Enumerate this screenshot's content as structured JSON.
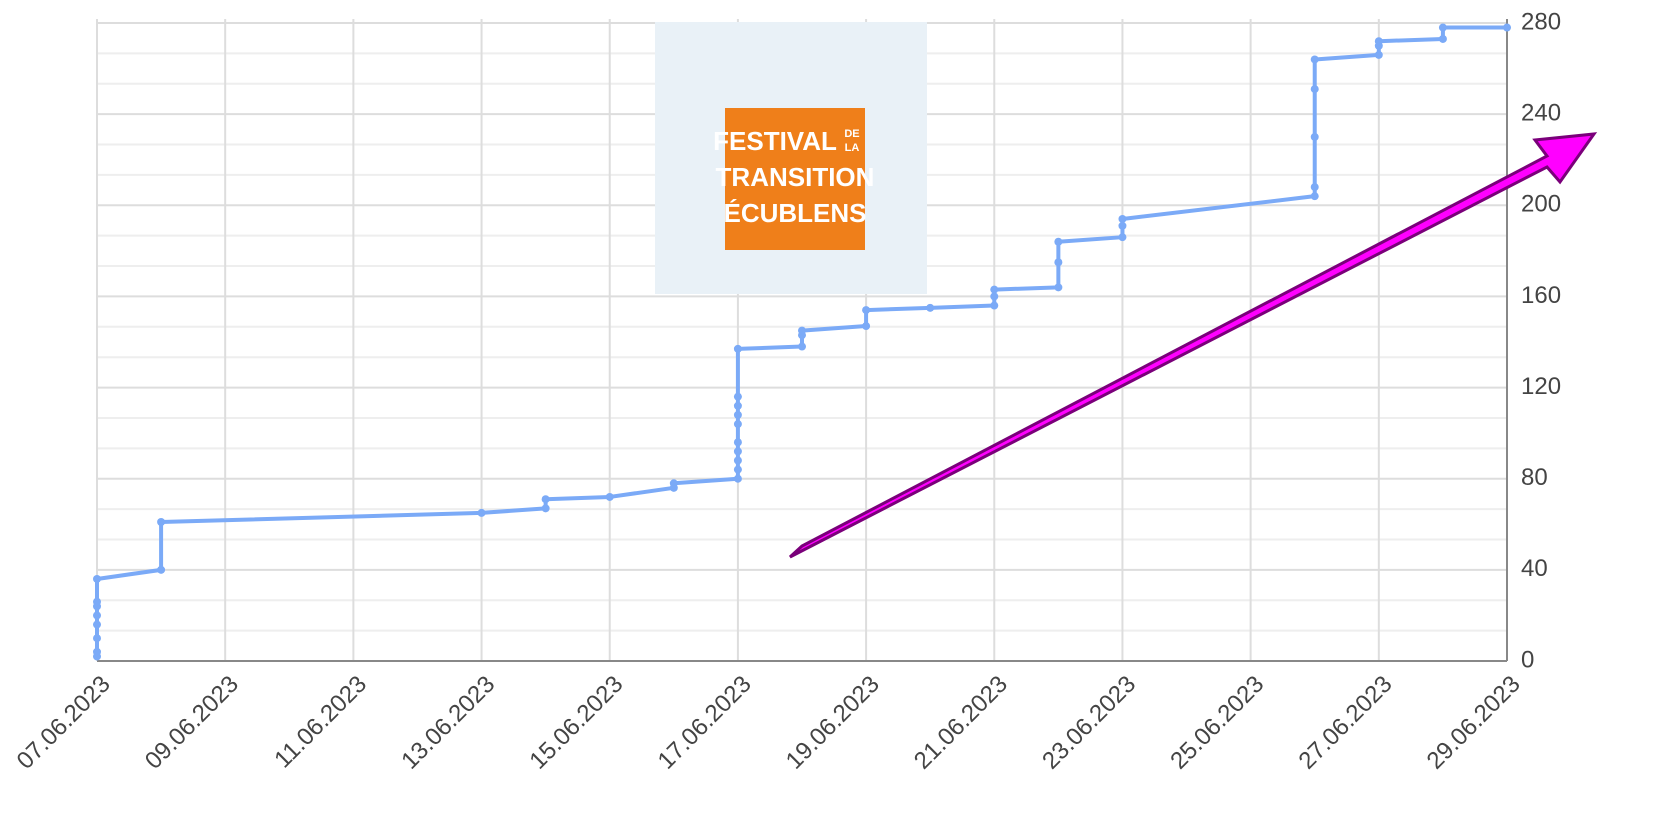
{
  "chart_data": {
    "type": "line",
    "logo_text": [
      "FESTIVAL",
      "DE",
      "LA",
      "TRANSITION",
      "ÉCUBLENS"
    ],
    "xlim": [
      7,
      29
    ],
    "xticks": [
      {
        "value": 7,
        "label": "07.06.2023"
      },
      {
        "value": 9,
        "label": "09.06.2023"
      },
      {
        "value": 11,
        "label": "11.06.2023"
      },
      {
        "value": 13,
        "label": "13.06.2023"
      },
      {
        "value": 15,
        "label": "15.06.2023"
      },
      {
        "value": 17,
        "label": "17.06.2023"
      },
      {
        "value": 19,
        "label": "19.06.2023"
      },
      {
        "value": 21,
        "label": "21.06.2023"
      },
      {
        "value": 23,
        "label": "23.06.2023"
      },
      {
        "value": 25,
        "label": "25.06.2023"
      },
      {
        "value": 27,
        "label": "27.06.2023"
      },
      {
        "value": 29,
        "label": "29.06.2023"
      }
    ],
    "ylim": [
      0,
      280
    ],
    "yticks": [
      0,
      40,
      80,
      120,
      160,
      200,
      240,
      280
    ],
    "grid": true,
    "y_axis_side": "right",
    "series": [
      {
        "color": "#7baaf7",
        "x": [
          7,
          7,
          7,
          7,
          7,
          7,
          7,
          7,
          8,
          8,
          13,
          14,
          14,
          15,
          16,
          16,
          17,
          17,
          17,
          17,
          17,
          17,
          17,
          17,
          17,
          17,
          18,
          18,
          18,
          19,
          19,
          20,
          21,
          21,
          21,
          22,
          22,
          22,
          23,
          23,
          23,
          26,
          26,
          26,
          26,
          26,
          27,
          27,
          27,
          28,
          28,
          29
        ],
        "values": [
          2,
          4,
          10,
          16,
          20,
          24,
          26,
          36,
          40,
          61,
          65,
          67,
          71,
          72,
          76,
          78,
          80,
          84,
          88,
          92,
          96,
          104,
          108,
          112,
          116,
          137,
          138,
          143,
          145,
          147,
          154,
          155,
          156,
          160,
          163,
          164,
          175,
          184,
          186,
          191,
          194,
          204,
          208,
          230,
          251,
          264,
          266,
          270,
          272,
          273,
          278,
          278
        ]
      }
    ]
  }
}
